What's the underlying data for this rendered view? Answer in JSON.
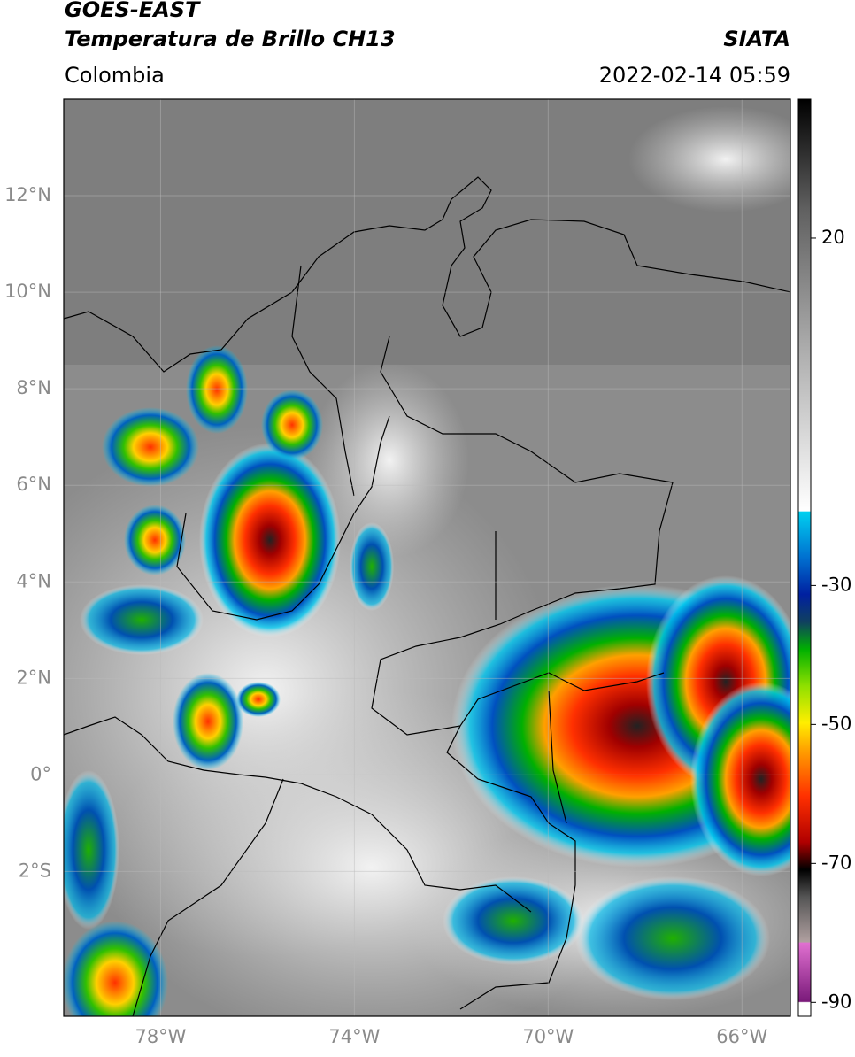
{
  "header": {
    "satellite": "GOES-EAST",
    "product": "Temperatura de Brillo CH13",
    "region": "Colombia",
    "source": "SIATA",
    "datetime": "2022-02-14 05:59"
  },
  "map": {
    "lonlim": [
      -80,
      -65
    ],
    "latlim": [
      -5,
      14
    ],
    "lat_ticks": [
      {
        "value": 12,
        "label": "12°N"
      },
      {
        "value": 10,
        "label": "10°N"
      },
      {
        "value": 8,
        "label": "8°N"
      },
      {
        "value": 6,
        "label": "6°N"
      },
      {
        "value": 4,
        "label": "4°N"
      },
      {
        "value": 2,
        "label": "2°N"
      },
      {
        "value": 0,
        "label": "0°"
      },
      {
        "value": -2,
        "label": "2°S"
      }
    ],
    "lon_ticks": [
      {
        "value": -78,
        "label": "78°W"
      },
      {
        "value": -74,
        "label": "74°W"
      },
      {
        "value": -70,
        "label": "70°W"
      },
      {
        "value": -66,
        "label": "66°W"
      }
    ]
  },
  "colorbar": {
    "lim": [
      -92,
      40
    ],
    "ticks": [
      20,
      -30,
      -50,
      -70,
      -90
    ]
  }
}
